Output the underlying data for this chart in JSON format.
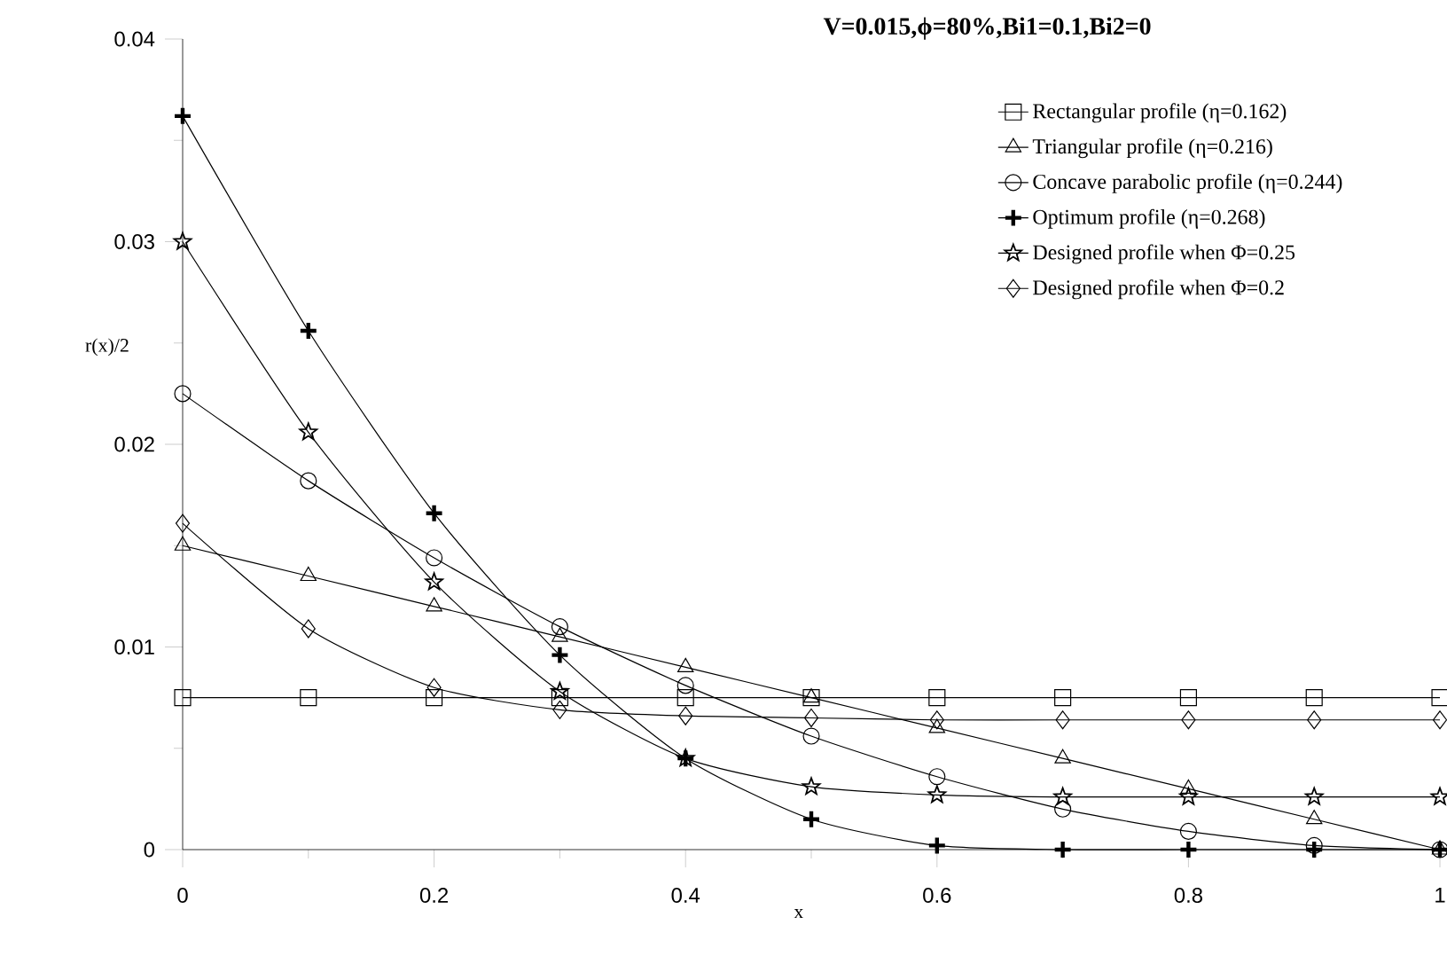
{
  "chart_data": {
    "type": "line",
    "title": "**V=0.015,ϕ=80%,Bi1=0.1,Bi2=0**",
    "xlabel": "x",
    "ylabel": "r(x)/2",
    "x": [
      0,
      0.1,
      0.2,
      0.3,
      0.4,
      0.5,
      0.6,
      0.7,
      0.8,
      0.9,
      1
    ],
    "xlim": [
      0,
      1
    ],
    "ylim": [
      0,
      0.04
    ],
    "xticks": [
      0,
      {
        "value": 0.1,
        "label": null
      },
      0.2,
      {
        "value": 0.3,
        "label": null
      },
      0.4,
      {
        "value": 0.5,
        "label": null
      },
      0.6,
      {
        "value": 0.7,
        "label": null
      },
      0.8,
      {
        "value": 0.9,
        "label": null
      },
      1
    ],
    "yticks": [
      0,
      {
        "value": 0.005,
        "label": null
      },
      0.01,
      {
        "value": 0.015,
        "label": null
      },
      0.02,
      {
        "value": 0.025,
        "label": null
      },
      0.03,
      {
        "value": 0.035,
        "label": null
      },
      0.04
    ],
    "grid": false,
    "legend": "top right",
    "series": [
      {
        "name": "Rectangular profile (η=0.162)",
        "color": "#000000",
        "marker": "square",
        "values": [
          0.0075,
          0.0075,
          0.0075,
          0.0075,
          0.0075,
          0.0075,
          0.0075,
          0.0075,
          0.0075,
          0.0075,
          0.0075
        ]
      },
      {
        "name": "Triangular profile (η=0.216)",
        "color": "#000000",
        "marker": "triangle",
        "values": [
          0.015,
          0.0135,
          0.012,
          0.0105,
          0.009,
          0.0075,
          0.006,
          0.0045,
          0.003,
          0.0015,
          0
        ]
      },
      {
        "name": "Concave parabolic profile (η=0.244)",
        "color": "#000000",
        "marker": "circle",
        "values": [
          0.0225,
          0.0182,
          0.0144,
          0.011,
          0.0081,
          0.0056,
          0.0036,
          0.002,
          0.0009,
          0.0002,
          0
        ]
      },
      {
        "name": "Optimum profile (η=0.268)",
        "color": "#000000",
        "marker": "cross",
        "values": [
          0.0362,
          0.0256,
          0.0166,
          0.0096,
          0.0045,
          0.0015,
          0.0002,
          0,
          0,
          0,
          0
        ]
      },
      {
        "name": "Designed profile when Φ=0.25",
        "color": "#000000",
        "marker": "star",
        "values": [
          0.03,
          0.0206,
          0.0132,
          0.0078,
          0.0045,
          0.0031,
          0.0027,
          0.0026,
          0.0026,
          0.0026,
          0.0026
        ]
      },
      {
        "name": "Designed profile when Φ=0.2",
        "color": "#000000",
        "marker": "diamond",
        "values": [
          0.0161,
          0.0109,
          0.008,
          0.0069,
          0.0066,
          0.0065,
          0.0064,
          0.0064,
          0.0064,
          0.0064,
          0.0064
        ]
      }
    ]
  }
}
